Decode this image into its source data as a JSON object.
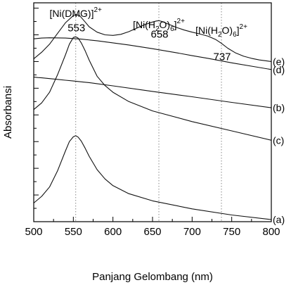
{
  "chart_data": {
    "type": "line",
    "xlabel": "Panjang Gelombang (nm)",
    "ylabel": "Absorbansi",
    "xlim": [
      500,
      800
    ],
    "x_ticks": [
      "500",
      "550",
      "600",
      "650",
      "700",
      "750",
      "800"
    ],
    "y_tick_labels": false,
    "grid": false,
    "reference_lines": [
      {
        "x": 553,
        "style": "dotted"
      },
      {
        "x": 658,
        "style": "dotted"
      },
      {
        "x": 737,
        "style": "dotted"
      }
    ],
    "annotations": [
      {
        "base": "[Ni(DMG)]",
        "sup": "2+",
        "x": 553
      },
      {
        "base": "[Ni(H",
        "sub": "2",
        "mid": "O)",
        "sub2": "6",
        "end": "]",
        "sup": "2+",
        "x": 658
      },
      {
        "base": "[Ni(H",
        "sub": "2",
        "mid": "O)",
        "sub2": "6",
        "end": "]",
        "sup": "2+",
        "x": 737
      }
    ],
    "peak_labels": [
      {
        "text": "553",
        "x": 553
      },
      {
        "text": "658",
        "x": 658
      },
      {
        "text": "737",
        "x": 737
      }
    ],
    "series": [
      {
        "name": "(a)",
        "x": [
          500,
          510,
          520,
          530,
          540,
          545,
          550,
          553,
          556,
          560,
          565,
          570,
          580,
          590,
          600,
          620,
          650,
          700,
          750,
          800
        ],
        "values": [
          0.7,
          0.95,
          1.3,
          1.9,
          2.65,
          3.0,
          3.18,
          3.22,
          3.17,
          3.02,
          2.75,
          2.45,
          1.95,
          1.6,
          1.35,
          1.05,
          0.78,
          0.48,
          0.25,
          0.08
        ]
      },
      {
        "name": "(b)",
        "x": [
          500,
          505,
          510,
          520,
          530,
          540,
          550,
          560,
          570,
          580,
          600,
          650,
          700,
          750,
          800
        ],
        "values": [
          5.42,
          5.4,
          5.39,
          5.36,
          5.33,
          5.3,
          5.27,
          5.24,
          5.21,
          5.17,
          5.09,
          4.88,
          4.68,
          4.47,
          4.27
        ]
      },
      {
        "name": "(c)",
        "x": [
          500,
          510,
          520,
          530,
          540,
          545,
          550,
          553,
          556,
          560,
          565,
          570,
          580,
          590,
          600,
          620,
          650,
          700,
          750,
          800
        ],
        "values": [
          4.2,
          4.45,
          4.85,
          5.5,
          6.25,
          6.65,
          6.9,
          6.93,
          6.88,
          6.7,
          6.4,
          6.05,
          5.45,
          5.1,
          4.85,
          4.5,
          4.15,
          3.75,
          3.4,
          3.05
        ]
      },
      {
        "name": "(d)",
        "x": [
          500,
          510,
          520,
          540,
          560,
          580,
          600,
          620,
          650,
          680,
          700,
          720,
          750,
          780,
          800
        ],
        "values": [
          6.85,
          6.88,
          6.89,
          6.88,
          6.84,
          6.78,
          6.7,
          6.62,
          6.48,
          6.33,
          6.22,
          6.12,
          5.95,
          5.8,
          5.7
        ]
      },
      {
        "name": "(e)",
        "x": [
          500,
          510,
          520,
          530,
          540,
          550,
          553,
          558,
          565,
          570,
          580,
          590,
          600,
          610,
          620,
          630,
          640,
          650,
          655,
          658,
          662,
          670,
          680,
          690,
          700,
          710,
          720,
          730,
          737,
          745,
          755,
          765,
          775,
          785,
          795,
          800
        ],
        "values": [
          6.1,
          6.35,
          6.65,
          7.05,
          7.45,
          7.72,
          7.76,
          7.72,
          7.48,
          7.3,
          7.1,
          7.0,
          6.98,
          7.02,
          7.12,
          7.25,
          7.38,
          7.48,
          7.52,
          7.53,
          7.5,
          7.4,
          7.28,
          7.18,
          7.1,
          7.03,
          6.95,
          6.82,
          6.68,
          6.5,
          6.32,
          6.2,
          6.12,
          6.06,
          6.02,
          6.0
        ]
      }
    ]
  }
}
